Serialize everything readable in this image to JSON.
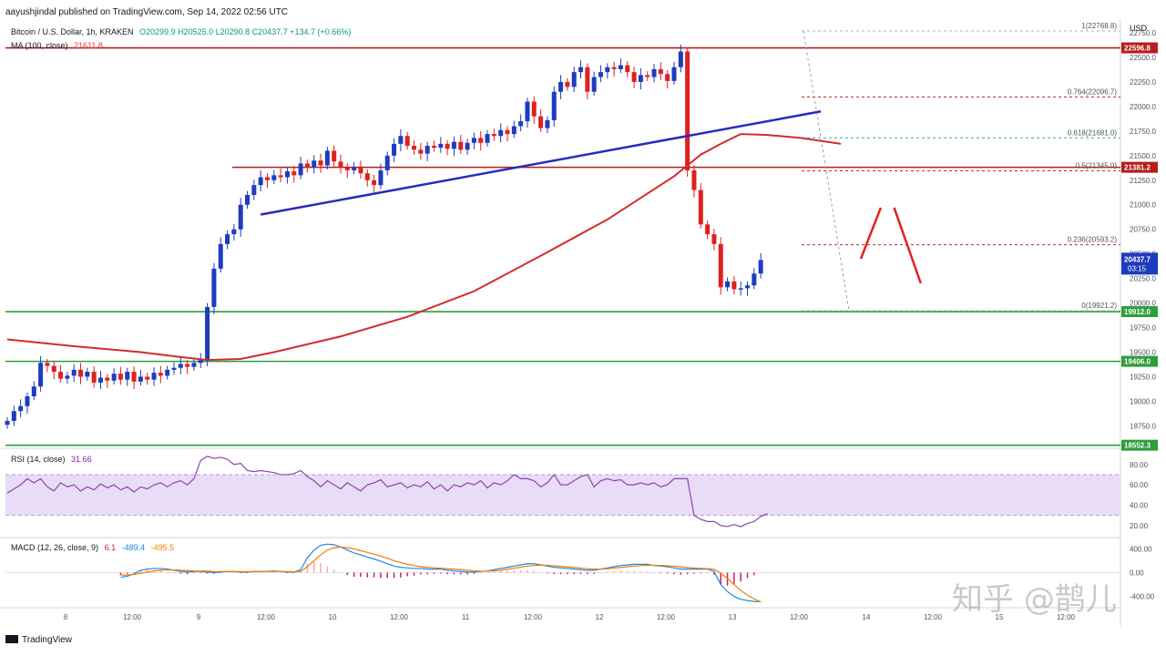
{
  "header": {
    "published_line": "aayushjindal published on TradingView.com, Sep 14, 2022 02:56 UTC",
    "symbol_line": "Bitcoin / U.S. Dollar, 1h, KRAKEN",
    "ohlc_line": "O20299.9 H20525.0 L20290.8 C20437.7 +134.7 (+0.66%)",
    "ma_label": "MA (100, close)",
    "ma_value": "21611.8",
    "rsi_label": "RSI (14, close)",
    "rsi_value": "31.66",
    "macd_label": "MACD (12, 26, close, 9)",
    "macd_values": [
      "6.1",
      "-489.4",
      "-495.5"
    ]
  },
  "footer": {
    "brand": "TradingView"
  },
  "watermark": "知乎 @鹊儿",
  "colors": {
    "up": "#1e3cbf",
    "down": "#e02020",
    "ma": "#d42b2b",
    "trend": "#2a2abf",
    "resistance": "#b71c1c",
    "support": "#2e9e3c",
    "fib": "#c62828",
    "rsi_line": "#8e44ad",
    "rsi_band": "#e9dcf6",
    "macd": "#1e88e5",
    "signal": "#f57c00"
  },
  "chart_data": {
    "type": "candlestick",
    "title": "Bitcoin / U.S. Dollar, 1h, KRAKEN",
    "x_ticks": [
      "8",
      "12:00",
      "9",
      "12:00",
      "10",
      "12:00",
      "11",
      "12:00",
      "12",
      "12:00",
      "13",
      "12:00",
      "14",
      "12:00",
      "15",
      "12:00"
    ],
    "y_ticks": [
      18750,
      19000,
      19250,
      19500,
      19750,
      20000,
      20250,
      20500,
      20750,
      21000,
      21250,
      21500,
      21750,
      22000,
      22250,
      22500,
      22750
    ],
    "y_axis_label": "USD",
    "ylim": [
      18540,
      22880
    ],
    "candle_closes": [
      18800,
      18900,
      18950,
      19050,
      19150,
      19390,
      19360,
      19300,
      19230,
      19260,
      19320,
      19250,
      19300,
      19190,
      19240,
      19210,
      19280,
      19220,
      19300,
      19200,
      19250,
      19220,
      19290,
      19260,
      19320,
      19340,
      19380,
      19350,
      19390,
      19420,
      19960,
      20350,
      20600,
      20700,
      20750,
      21000,
      21100,
      21200,
      21280,
      21250,
      21300,
      21280,
      21340,
      21300,
      21420,
      21380,
      21450,
      21400,
      21550,
      21440,
      21380,
      21350,
      21380,
      21320,
      21250,
      21200,
      21350,
      21500,
      21620,
      21700,
      21600,
      21560,
      21520,
      21600,
      21580,
      21620,
      21570,
      21640,
      21560,
      21630,
      21680,
      21630,
      21720,
      21700,
      21760,
      21720,
      21800,
      21850,
      22050,
      21900,
      21780,
      21860,
      22150,
      22250,
      22200,
      22350,
      22400,
      22150,
      22300,
      22350,
      22400,
      22380,
      22420,
      22350,
      22250,
      22320,
      22300,
      22380,
      22330,
      22260,
      22400,
      22560,
      21350,
      21150,
      20800,
      20700,
      20600,
      20160,
      20220,
      20140,
      20150,
      20180,
      20300,
      20437.7
    ],
    "price_labels": [
      {
        "value": 22596.8,
        "text": "22596.8"
      },
      {
        "value": 21381.2,
        "text": "21381.2"
      },
      {
        "value": 19912.0,
        "text": "19912.0"
      },
      {
        "value": 19406.0,
        "text": "19406.0"
      },
      {
        "value": 18552.3,
        "text": "18552.3"
      }
    ],
    "last_price": {
      "value": 20437.7,
      "text": "20437.7",
      "countdown": "03:15"
    },
    "fibonacci": [
      {
        "level": "1",
        "value": 22768.8,
        "label": "1(22768.8)"
      },
      {
        "level": "0.764",
        "value": 22096.7,
        "label": "0.764(22096.7)"
      },
      {
        "level": "0.618",
        "value": 21681.0,
        "label": "0.618(21681.0)"
      },
      {
        "level": "0.5",
        "value": 21345.0,
        "label": "0.5(21345.0)"
      },
      {
        "level": "0.236",
        "value": 20593.2,
        "label": "0.236(20593.2)"
      },
      {
        "level": "0",
        "value": 19921.2,
        "label": "0(19921.2)"
      }
    ],
    "ma_series": [
      {
        "t": 0,
        "v": 19630
      },
      {
        "t": 10,
        "v": 19560
      },
      {
        "t": 20,
        "v": 19500
      },
      {
        "t": 26,
        "v": 19450
      },
      {
        "t": 30,
        "v": 19420
      },
      {
        "t": 35,
        "v": 19430
      },
      {
        "t": 40,
        "v": 19500
      },
      {
        "t": 50,
        "v": 19660
      },
      {
        "t": 60,
        "v": 19860
      },
      {
        "t": 70,
        "v": 20120
      },
      {
        "t": 80,
        "v": 20480
      },
      {
        "t": 90,
        "v": 20850
      },
      {
        "t": 100,
        "v": 21290
      },
      {
        "t": 104,
        "v": 21510
      },
      {
        "t": 107,
        "v": 21620
      },
      {
        "t": 110,
        "v": 21720
      },
      {
        "t": 114,
        "v": 21710
      },
      {
        "t": 119,
        "v": 21680
      },
      {
        "t": 125,
        "v": 21620
      }
    ],
    "trend_line": [
      {
        "t": 38,
        "v": 20900
      },
      {
        "t": 122,
        "v": 21950
      }
    ],
    "projection": [
      {
        "t": 128,
        "v": 20450
      },
      {
        "t": 131,
        "v": 20970
      },
      {
        "t": 133,
        "v": 20970
      },
      {
        "t": 137,
        "v": 20200
      }
    ],
    "rsi": {
      "ticks": [
        20,
        40,
        60,
        80
      ],
      "levels": [
        30,
        70
      ],
      "values": [
        52,
        56,
        60,
        66,
        62,
        66,
        58,
        54,
        62,
        58,
        60,
        54,
        58,
        55,
        61,
        57,
        60,
        55,
        58,
        53,
        58,
        56,
        60,
        62,
        58,
        62,
        64,
        60,
        66,
        84,
        88,
        86,
        87,
        85,
        80,
        81,
        74,
        73,
        74,
        73,
        72,
        70,
        70,
        71,
        74,
        68,
        64,
        58,
        64,
        60,
        56,
        62,
        58,
        54,
        60,
        62,
        65,
        58,
        60,
        62,
        57,
        60,
        58,
        63,
        56,
        60,
        54,
        60,
        58,
        62,
        60,
        64,
        57,
        62,
        60,
        64,
        70,
        66,
        66,
        64,
        58,
        62,
        70,
        60,
        60,
        64,
        68,
        70,
        58,
        64,
        66,
        64,
        65,
        60,
        60,
        62,
        60,
        62,
        58,
        60,
        66,
        66,
        66,
        30,
        26,
        24,
        24,
        20,
        19,
        21,
        19,
        22,
        24,
        29,
        31.66
      ]
    },
    "macd": {
      "ticks": [
        -400,
        0,
        400
      ],
      "macd": [
        -80,
        -60,
        -20,
        40,
        60,
        70,
        70,
        60,
        40,
        20,
        10,
        20,
        20,
        10,
        0,
        10,
        20,
        20,
        10,
        10,
        20,
        20,
        20,
        30,
        20,
        10,
        10,
        50,
        250,
        380,
        460,
        480,
        470,
        430,
        380,
        330,
        300,
        260,
        230,
        190,
        150,
        110,
        90,
        80,
        70,
        70,
        60,
        60,
        60,
        40,
        30,
        20,
        10,
        10,
        20,
        30,
        50,
        70,
        90,
        110,
        130,
        150,
        150,
        130,
        110,
        90,
        80,
        70,
        60,
        50,
        40,
        40,
        60,
        80,
        100,
        120,
        130,
        140,
        140,
        140,
        120,
        110,
        100,
        80,
        60,
        60,
        60,
        60,
        60,
        20,
        -200,
        -320,
        -400,
        -450,
        -470,
        -485,
        -489.4
      ],
      "signal": [
        -40,
        -40,
        -30,
        -10,
        10,
        30,
        40,
        45,
        45,
        40,
        35,
        30,
        28,
        25,
        20,
        18,
        18,
        18,
        17,
        16,
        17,
        18,
        18,
        20,
        20,
        18,
        16,
        20,
        100,
        200,
        300,
        380,
        420,
        430,
        420,
        400,
        370,
        340,
        310,
        280,
        240,
        200,
        170,
        140,
        120,
        100,
        90,
        80,
        74,
        66,
        60,
        50,
        40,
        30,
        24,
        24,
        30,
        40,
        56,
        74,
        92,
        110,
        120,
        126,
        124,
        116,
        106,
        96,
        86,
        76,
        66,
        60,
        60,
        66,
        76,
        88,
        100,
        110,
        118,
        124,
        124,
        122,
        116,
        108,
        96,
        86,
        78,
        72,
        66,
        56,
        -10,
        -100,
        -200,
        -300,
        -380,
        -440,
        -495.5
      ]
    }
  }
}
